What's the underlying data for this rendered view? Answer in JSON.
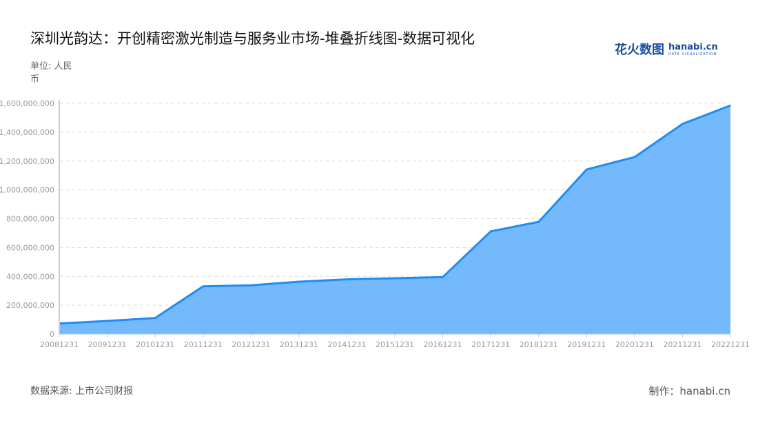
{
  "header": {
    "title": "深圳光韵达：开创精密激光制造与服务业市场-堆叠折线图-数据可视化",
    "unit": "单位: 人民币"
  },
  "logo": {
    "cn": "花火数图",
    "en": "hanabi.cn",
    "sub": "DATA VISUALIZATION"
  },
  "footer": {
    "source": "数据来源: 上市公司财报",
    "maker": "制作：hanabi.cn"
  },
  "chart_data": {
    "type": "area",
    "categories": [
      "20081231",
      "20091231",
      "20101231",
      "20111231",
      "20121231",
      "20131231",
      "20141231",
      "20151231",
      "20161231",
      "20171231",
      "20181231",
      "20191231",
      "20201231",
      "20211231",
      "20221231"
    ],
    "values": [
      73000000,
      91000000,
      111000000,
      331000000,
      338000000,
      363000000,
      379000000,
      387000000,
      395000000,
      712000000,
      778000000,
      1141000000,
      1227000000,
      1457000000,
      1585000000
    ],
    "yticks": [
      "0",
      "200,000,000",
      "400,000,000",
      "600,000,000",
      "800,000,000",
      "1,000,000,000",
      "1,200,000,000",
      "1,400,000,000",
      "1,600,000,000"
    ],
    "ylim": [
      0,
      1600000000
    ],
    "grid": true,
    "colors": {
      "line": "#1e8cf5",
      "fill": "#74b9fc",
      "grid": "#dddddd"
    }
  }
}
